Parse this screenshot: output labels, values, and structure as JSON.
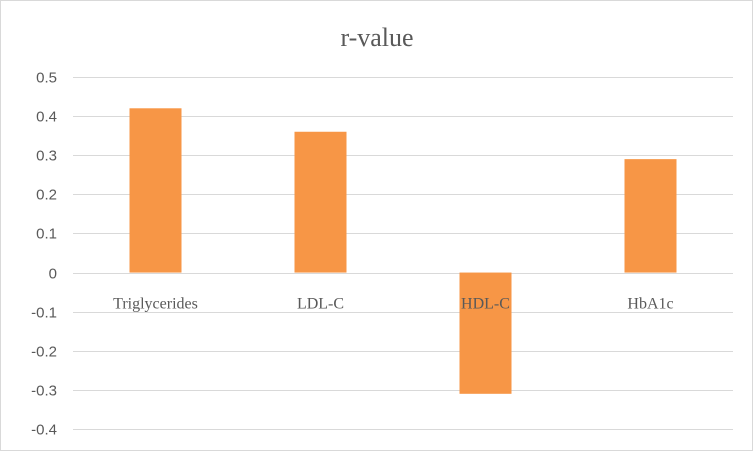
{
  "chart_data": {
    "type": "bar",
    "title": "r-value",
    "categories": [
      "Triglycerides",
      "LDL-C",
      "HDL-C",
      "HbA1c"
    ],
    "values": [
      0.42,
      0.36,
      -0.31,
      0.29
    ],
    "ylim": [
      -0.4,
      0.5
    ],
    "yticks": [
      "0.5",
      "0.4",
      "0.3",
      "0.2",
      "0.1",
      "0",
      "-0.1",
      "-0.2",
      "-0.3",
      "-0.4"
    ],
    "grid": true,
    "bar_color": "#F79646"
  }
}
